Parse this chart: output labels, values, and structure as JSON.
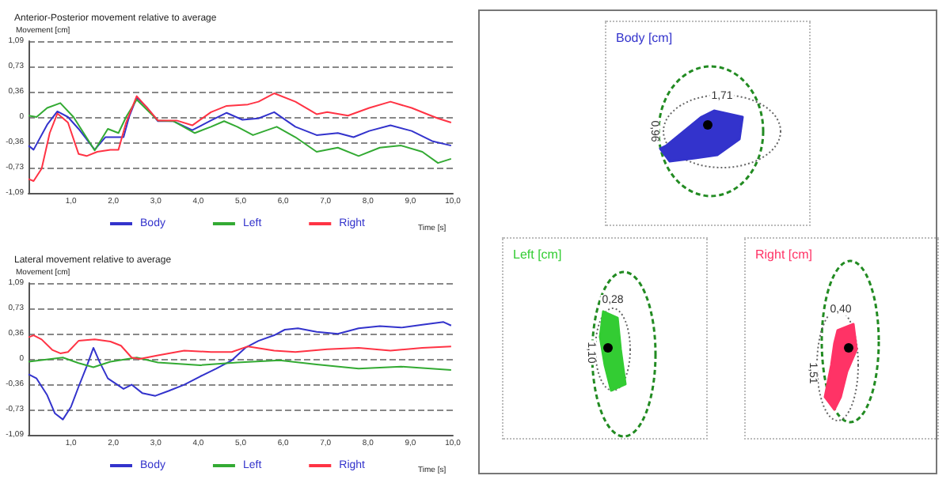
{
  "chart_data": [
    {
      "type": "line",
      "title": "Anterior-Posterior movement relative to average",
      "xlabel": "Time [s]",
      "ylabel": "Movement [cm]",
      "xlim": [
        0,
        10
      ],
      "ylim": [
        -1.09,
        1.09
      ],
      "xticks": [
        {
          "value": 1,
          "label": "1,0"
        },
        {
          "value": 2,
          "label": "2,0"
        },
        {
          "value": 3,
          "label": "3,0"
        },
        {
          "value": 4,
          "label": "4,0"
        },
        {
          "value": 5,
          "label": "5,0"
        },
        {
          "value": 6,
          "label": "6,0"
        },
        {
          "value": 7,
          "label": "7,0"
        },
        {
          "value": 8,
          "label": "8,0"
        },
        {
          "value": 9,
          "label": "9,0"
        },
        {
          "value": 10,
          "label": "10,0"
        }
      ],
      "yticks": [
        {
          "value": -1.09,
          "label": "-1,09"
        },
        {
          "value": -0.73,
          "label": "-0,73"
        },
        {
          "value": -0.36,
          "label": "-0,36"
        },
        0,
        {
          "value": 0.36,
          "label": "0,36"
        },
        {
          "value": 0.73,
          "label": "0,73"
        },
        {
          "value": 1.09,
          "label": "1,09"
        }
      ],
      "grid": "y",
      "legend": "bottom",
      "marker": "none",
      "line_style": "solid",
      "series": [
        {
          "name": "Body",
          "color": "#3333cc",
          "x": [
            0,
            0.12,
            0.44,
            0.68,
            0.93,
            1.18,
            1.56,
            1.81,
            2.05,
            2.24,
            2.37,
            2.55,
            2.8,
            3.05,
            3.42,
            3.86,
            4.3,
            4.67,
            5.04,
            5.42,
            5.79,
            6.29,
            6.79,
            7.29,
            7.66,
            8.03,
            8.53,
            9.03,
            9.53,
            9.96
          ],
          "values": [
            -0.41,
            -0.47,
            -0.11,
            0.08,
            0,
            -0.17,
            -0.47,
            -0.29,
            -0.29,
            -0.29,
            0,
            0.28,
            0.13,
            -0.06,
            -0.06,
            -0.19,
            -0.05,
            0.06,
            -0.04,
            -0.02,
            0.07,
            -0.14,
            -0.26,
            -0.23,
            -0.29,
            -0.2,
            -0.12,
            -0.2,
            -0.35,
            -0.41
          ]
        },
        {
          "name": "Left",
          "color": "#33aa33",
          "x": [
            0,
            0.19,
            0.44,
            0.75,
            1.06,
            1.56,
            1.87,
            2.12,
            2.3,
            2.55,
            2.8,
            3.05,
            3.42,
            3.92,
            4.3,
            4.61,
            4.92,
            5.29,
            5.85,
            6.29,
            6.79,
            7.29,
            7.78,
            8.28,
            8.78,
            9.28,
            9.65,
            9.96
          ],
          "values": [
            0.02,
            0,
            0.13,
            0.2,
            0,
            -0.48,
            -0.17,
            -0.23,
            0,
            0.25,
            0.1,
            -0.05,
            -0.06,
            -0.23,
            -0.14,
            -0.06,
            -0.14,
            -0.26,
            -0.14,
            -0.29,
            -0.5,
            -0.44,
            -0.56,
            -0.44,
            -0.41,
            -0.5,
            -0.66,
            -0.6
          ]
        },
        {
          "name": "Right",
          "color": "#ff3344",
          "x": [
            0,
            0.12,
            0.31,
            0.5,
            0.68,
            0.93,
            1.18,
            1.37,
            1.62,
            1.93,
            2.12,
            2.3,
            2.55,
            2.8,
            3.05,
            3.49,
            3.86,
            4.3,
            4.67,
            5.17,
            5.42,
            5.79,
            6.29,
            6.79,
            7.04,
            7.53,
            8.03,
            8.53,
            9.03,
            9.4,
            9.65,
            9.96
          ],
          "values": [
            -0.89,
            -0.92,
            -0.74,
            -0.23,
            0.05,
            -0.08,
            -0.53,
            -0.56,
            -0.5,
            -0.47,
            -0.47,
            -0.08,
            0.3,
            0.13,
            -0.05,
            -0.05,
            -0.12,
            0.07,
            0.16,
            0.18,
            0.22,
            0.34,
            0.22,
            0.04,
            0.07,
            0.02,
            0.13,
            0.22,
            0.13,
            0.04,
            -0.02,
            -0.08
          ]
        }
      ]
    },
    {
      "type": "line",
      "title": "Lateral movement relative to average",
      "xlabel": "Time [s]",
      "ylabel": "Movement [cm]",
      "xlim": [
        0,
        10
      ],
      "ylim": [
        -1.09,
        1.09
      ],
      "xticks": [
        {
          "value": 1,
          "label": "1,0"
        },
        {
          "value": 2,
          "label": "2,0"
        },
        {
          "value": 3,
          "label": "3,0"
        },
        {
          "value": 4,
          "label": "4,0"
        },
        {
          "value": 5,
          "label": "5,0"
        },
        {
          "value": 6,
          "label": "6,0"
        },
        {
          "value": 7,
          "label": "7,0"
        },
        {
          "value": 8,
          "label": "8,0"
        },
        {
          "value": 9,
          "label": "9,0"
        },
        {
          "value": 10,
          "label": "10,0"
        }
      ],
      "yticks": [
        {
          "value": -1.09,
          "label": "-1,09"
        },
        {
          "value": -0.73,
          "label": "-0,73"
        },
        {
          "value": -0.36,
          "label": "-0,36"
        },
        0,
        {
          "value": 0.36,
          "label": "0,36"
        },
        {
          "value": 0.73,
          "label": "0,73"
        },
        {
          "value": 1.09,
          "label": "1,09"
        }
      ],
      "grid": "y",
      "legend": "bottom",
      "marker": "none",
      "line_style": "solid",
      "series": [
        {
          "name": "Body",
          "color": "#3333cc",
          "x": [
            0,
            0.19,
            0.44,
            0.62,
            0.81,
            1.0,
            1.18,
            1.37,
            1.53,
            1.68,
            1.87,
            2.24,
            2.43,
            2.68,
            2.99,
            3.3,
            3.67,
            4.05,
            4.42,
            4.79,
            5.11,
            5.42,
            5.79,
            6.04,
            6.35,
            6.79,
            7.29,
            7.78,
            8.28,
            8.78,
            9.28,
            9.78,
            9.96
          ],
          "values": [
            -0.22,
            -0.28,
            -0.52,
            -0.78,
            -0.87,
            -0.69,
            -0.4,
            -0.11,
            0.16,
            -0.05,
            -0.28,
            -0.43,
            -0.37,
            -0.49,
            -0.53,
            -0.46,
            -0.37,
            -0.25,
            -0.14,
            -0.02,
            0.16,
            0.26,
            0.34,
            0.42,
            0.44,
            0.39,
            0.36,
            0.44,
            0.47,
            0.45,
            0.49,
            0.53,
            0.48
          ]
        },
        {
          "name": "Left",
          "color": "#33aa33",
          "x": [
            0,
            0.81,
            1.18,
            1.53,
            1.93,
            2.55,
            3.05,
            4.05,
            4.92,
            5.92,
            6.79,
            7.78,
            8.78,
            9.96
          ],
          "values": [
            -0.04,
            0.02,
            -0.06,
            -0.12,
            -0.04,
            0.02,
            -0.05,
            -0.09,
            -0.05,
            -0.02,
            -0.08,
            -0.14,
            -0.11,
            -0.16
          ]
        },
        {
          "name": "Right",
          "color": "#ff3344",
          "x": [
            0,
            0.12,
            0.31,
            0.56,
            0.75,
            0.93,
            1.18,
            1.56,
            1.93,
            2.18,
            2.43,
            2.62,
            3.05,
            3.67,
            4.3,
            4.79,
            5.17,
            5.79,
            6.29,
            7.04,
            7.78,
            8.53,
            9.28,
            9.96
          ],
          "values": [
            0.31,
            0.34,
            0.28,
            0.13,
            0.08,
            0.1,
            0.26,
            0.28,
            0.25,
            0.19,
            0.02,
            0,
            0.05,
            0.12,
            0.1,
            0.1,
            0.18,
            0.12,
            0.1,
            0.14,
            0.16,
            0.12,
            0.16,
            0.18
          ]
        }
      ]
    },
    {
      "type": "other",
      "title": "Body [cm]",
      "color": "#3333cc",
      "annotations": [
        "1,71",
        "0,96"
      ]
    },
    {
      "type": "other",
      "title": "Left [cm]",
      "color": "#33cc33",
      "annotations": [
        "0,28",
        "1,10"
      ]
    },
    {
      "type": "other",
      "title": "Right [cm]",
      "color": "#ff3366",
      "annotations": [
        "0,40",
        "1,51"
      ]
    }
  ]
}
